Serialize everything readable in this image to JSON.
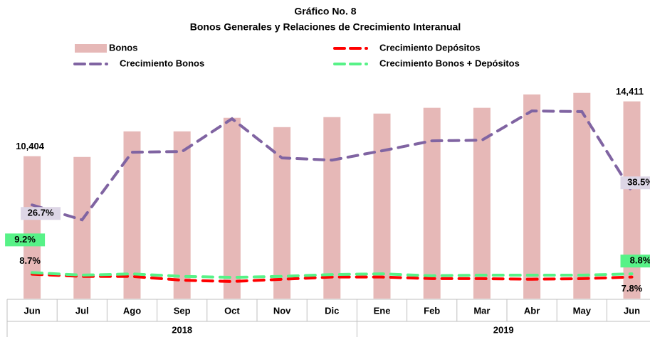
{
  "chart_data": {
    "type": "bar_line",
    "title": "Gráfico No. 8",
    "subtitle": "Bonos Generales y Relaciones de Crecimiento Interanual",
    "categories": [
      "Jun",
      "Jul",
      "Ago",
      "Sep",
      "Oct",
      "Nov",
      "Dic",
      "Ene",
      "Feb",
      "Mar",
      "Abr",
      "May",
      "Jun"
    ],
    "x_groups": [
      {
        "label": "2018",
        "span": 7
      },
      {
        "label": "2019",
        "span": 6
      }
    ],
    "ylim": [
      0,
      16000
    ],
    "y2lim": [
      -55,
      136
    ],
    "y3lim": [
      1,
      70
    ],
    "series": [
      {
        "name": "Bonos",
        "kind": "bar",
        "color": "#e6b8b7",
        "values": [
          10404,
          10350,
          12220,
          12220,
          13210,
          12530,
          13260,
          13520,
          13940,
          13940,
          14920,
          15030,
          14411
        ],
        "value_labels": [
          "10,404",
          null,
          null,
          null,
          null,
          null,
          null,
          null,
          null,
          null,
          null,
          null,
          "14,411"
        ]
      },
      {
        "name": "Crecimiento Depósitos",
        "kind": "line",
        "axis": "y3",
        "color": "#ff0000",
        "values": [
          8.7,
          8.0,
          8.0,
          6.8,
          6.4,
          7.1,
          7.8,
          7.8,
          7.3,
          7.3,
          7.1,
          7.3,
          7.8
        ],
        "value_labels": [
          "8.7%",
          null,
          null,
          null,
          null,
          null,
          null,
          null,
          null,
          null,
          null,
          null,
          "7.8%"
        ]
      },
      {
        "name": "Crecimiento Bonos",
        "kind": "line",
        "axis": "y2",
        "color": "#8064a2",
        "values": [
          26.7,
          13.7,
          72.7,
          73.3,
          101.9,
          67.7,
          65.8,
          73.9,
          82.6,
          83.2,
          108.7,
          108.1,
          38.5
        ],
        "value_labels": [
          "26.7%",
          null,
          null,
          null,
          null,
          null,
          null,
          null,
          null,
          null,
          null,
          null,
          "38.5%"
        ]
      },
      {
        "name": "Crecimiento Bonos + Depósitos",
        "kind": "line",
        "axis": "y3",
        "color": "#57f287",
        "values": [
          9.2,
          8.4,
          8.8,
          8.0,
          7.7,
          8.0,
          8.6,
          8.8,
          8.2,
          8.4,
          8.4,
          8.4,
          8.8
        ],
        "value_labels": [
          "9.2%",
          null,
          null,
          null,
          null,
          null,
          null,
          null,
          null,
          null,
          null,
          null,
          "8.8%"
        ]
      }
    ]
  }
}
